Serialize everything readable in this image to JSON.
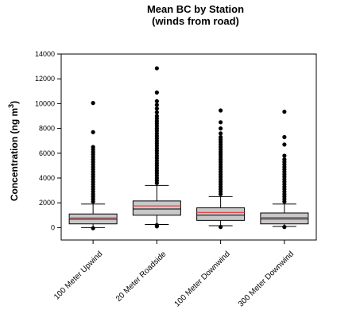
{
  "chart_data": {
    "type": "box",
    "title": "Mean BC by Station",
    "subtitle": "(winds from road)",
    "ylabel": "Concentration (ng m",
    "ylabel_superscript": "3",
    "ylabel_suffix": ")",
    "ylim": [
      -1000,
      14000
    ],
    "yticks": [
      0,
      2000,
      4000,
      6000,
      8000,
      10000,
      12000,
      14000
    ],
    "ytick_labels": [
      "0",
      "2000",
      "4000",
      "6000",
      "8000",
      "10000",
      "12000",
      "14000"
    ],
    "grid": false,
    "colors": {
      "box_fill": "#c8c8c8",
      "median_line": "#000000",
      "mean_line": "#e8424a",
      "outlier": "#000000"
    },
    "categories": [
      "100 Meter Upwind",
      "20 Meter Roadside",
      "100 Meter Downwind",
      "300 Meter Downwind"
    ],
    "boxes": [
      {
        "q1": 300,
        "median": 680,
        "mean": 790,
        "q3": 1100,
        "whisker_low": 0,
        "whisker_high": 1900,
        "outliers_low": [
          -50
        ],
        "outliers_high": [
          2100,
          2300,
          2500,
          2700,
          2900,
          3100,
          3300,
          3500,
          3700,
          3900,
          4100,
          4300,
          4500,
          4700,
          4900,
          5100,
          5300,
          5500,
          5700,
          5900,
          6100,
          6300,
          6500,
          7700,
          10050
        ]
      },
      {
        "q1": 1000,
        "median": 1500,
        "mean": 1750,
        "q3": 2150,
        "whisker_low": 250,
        "whisker_high": 3400,
        "outliers_low": [
          100,
          200
        ],
        "outliers_high": [
          3600,
          3800,
          4000,
          4200,
          4400,
          4600,
          4800,
          5000,
          5200,
          5400,
          5600,
          5800,
          6000,
          6200,
          6400,
          6600,
          6800,
          7000,
          7200,
          7400,
          7600,
          7800,
          8000,
          8200,
          8400,
          8600,
          8800,
          9000,
          9300,
          9600,
          9900,
          10200,
          10900,
          12850
        ]
      },
      {
        "q1": 580,
        "median": 1000,
        "mean": 1220,
        "q3": 1600,
        "whisker_low": 150,
        "whisker_high": 2500,
        "outliers_low": [
          50
        ],
        "outliers_high": [
          2700,
          2900,
          3100,
          3300,
          3500,
          3700,
          3900,
          4100,
          4300,
          4500,
          4700,
          4900,
          5100,
          5300,
          5500,
          5700,
          5900,
          6100,
          6300,
          6500,
          6700,
          6900,
          7100,
          7300,
          7600,
          8000,
          8500,
          9450
        ]
      },
      {
        "q1": 300,
        "median": 700,
        "mean": 820,
        "q3": 1180,
        "whisker_low": 100,
        "whisker_high": 1900,
        "outliers_low": [
          50
        ],
        "outliers_high": [
          2100,
          2300,
          2500,
          2700,
          2900,
          3100,
          3300,
          3500,
          3700,
          3900,
          4100,
          4300,
          4500,
          4700,
          4900,
          5100,
          5300,
          5500,
          5800,
          6700,
          7300,
          9350
        ]
      }
    ]
  }
}
